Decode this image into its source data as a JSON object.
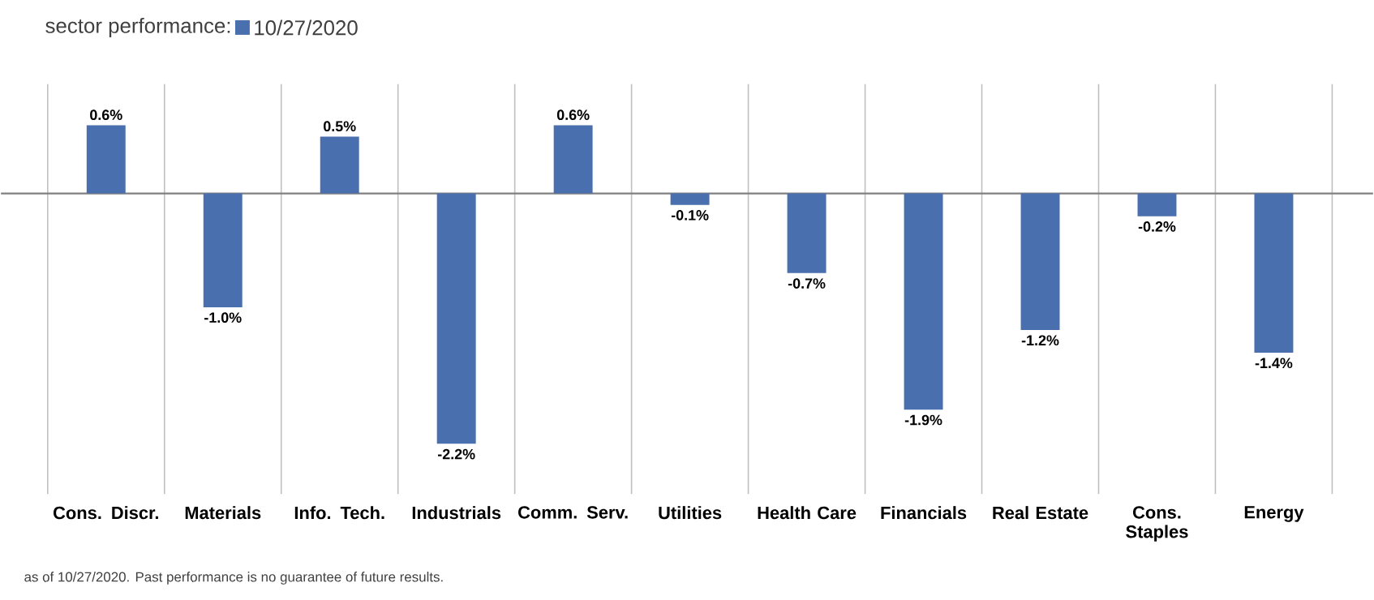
{
  "chart_data": {
    "type": "bar",
    "title": "sector performance:",
    "categories": [
      "Cons. Discr.",
      "Materials",
      "Info. Tech.",
      "Industrials",
      "Comm. Serv.",
      "Utilities",
      "Health Care",
      "Financials",
      "Real Estate",
      "Cons. Staples",
      "Energy"
    ],
    "series": [
      {
        "name": "10/27/2020",
        "color": "#4a6fae",
        "values": [
          0.6,
          -1.0,
          0.5,
          -2.2,
          0.6,
          -0.1,
          -0.7,
          -1.9,
          -1.2,
          -0.2,
          -1.4
        ],
        "value_labels": [
          "0.6%",
          "-1.0%",
          "0.5%",
          "-2.2%",
          "0.6%",
          "-0.1%",
          "-0.7%",
          "-1.9%",
          "-1.2%",
          "-0.2%",
          "-1.4%"
        ]
      }
    ],
    "grid": "x",
    "legend": "top left",
    "annotations": [
      "as of 10/27/2020. Past performance is no guarantee of future results."
    ]
  }
}
